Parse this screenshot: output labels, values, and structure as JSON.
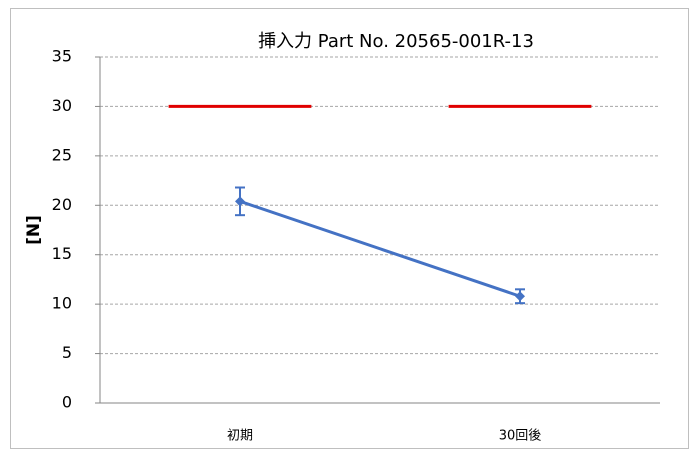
{
  "chart_data": {
    "type": "line",
    "title": "挿入力 Part No. 20565-001R-13",
    "y_label": "[N]",
    "categories": [
      "初期",
      "30回後"
    ],
    "series": [
      {
        "color": "#4472c4",
        "values": [
          20.4,
          10.8
        ],
        "errors": [
          1.4,
          0.7
        ],
        "marker": "diamond",
        "style": "line"
      },
      {
        "color": "#e00000",
        "values": [
          30,
          30
        ],
        "style": "category-dash"
      }
    ],
    "ylim": [
      0,
      35
    ],
    "yticks": [
      0,
      5,
      10,
      15,
      20,
      25,
      30,
      35
    ],
    "grid": true
  }
}
